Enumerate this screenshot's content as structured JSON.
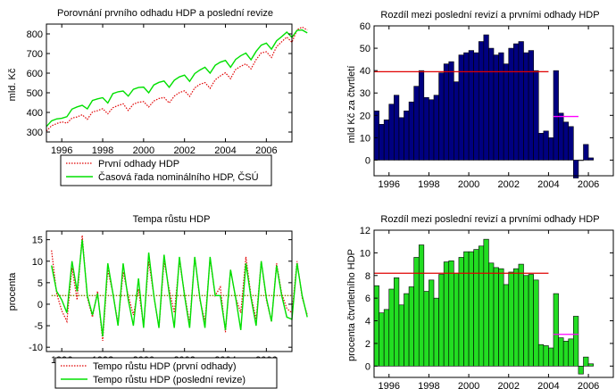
{
  "chart_data": [
    {
      "type": "line",
      "title": "Porovnání prvního odhadu HDP a poslední revize",
      "xlabel": "",
      "ylabel": "mld. Kč",
      "xlim": [
        1995.25,
        2007.25
      ],
      "ylim": [
        250,
        850
      ],
      "xticks": [
        1996,
        1998,
        2000,
        2002,
        2004,
        2006
      ],
      "yticks": [
        300,
        400,
        500,
        600,
        700,
        800
      ],
      "legend_position": "bottom",
      "grid": false,
      "series": [
        {
          "name": "První odhady HDP",
          "color": "#e00000",
          "style": "dotted",
          "values": [
            305,
            332,
            343,
            352,
            345,
            371,
            377,
            388,
            365,
            402,
            409,
            419,
            393,
            424,
            435,
            444,
            410,
            442,
            452,
            455,
            428,
            458,
            471,
            476,
            448,
            483,
            501,
            510,
            482,
            525,
            543,
            552,
            523,
            566,
            586,
            602,
            572,
            619,
            635,
            647,
            622,
            669,
            703,
            709,
            680,
            735,
            760,
            784,
            757,
            821,
            835,
            820
          ]
        },
        {
          "name": "Časová řada nominálního HDP, ČSÚ",
          "color": "#00e000",
          "style": "solid",
          "values": [
            328,
            357,
            367,
            370,
            378,
            417,
            428,
            436,
            418,
            461,
            469,
            475,
            448,
            496,
            505,
            509,
            483,
            518,
            527,
            529,
            500,
            540,
            553,
            560,
            528,
            564,
            581,
            590,
            558,
            598,
            616,
            630,
            600,
            640,
            656,
            665,
            630,
            670,
            689,
            702,
            668,
            711,
            743,
            753,
            722,
            765,
            786,
            809,
            782,
            818,
            820,
            805
          ]
        }
      ],
      "x_start": 1995.25,
      "x_step": 0.25
    },
    {
      "type": "bar",
      "title": "Rozdíl mezi poslední revizí a prvními odhady HDP",
      "xlabel": "",
      "ylabel": "mld Kč za čtvrtletí",
      "xlim": [
        1995.25,
        2007.25
      ],
      "ylim": [
        -7,
        60
      ],
      "xticks": [
        1996,
        1998,
        2000,
        2002,
        2004,
        2006
      ],
      "yticks": [
        0,
        10,
        20,
        30,
        40,
        50,
        60
      ],
      "bar_color": "#000080",
      "x_start": 1995.25,
      "x_step": 0.25,
      "values": [
        22,
        16,
        18,
        25,
        29,
        19,
        22,
        26,
        33,
        40,
        28,
        27,
        29,
        39,
        43,
        44,
        35,
        47,
        48,
        49,
        48,
        53,
        56,
        50,
        47,
        48,
        43,
        50,
        52,
        53,
        48,
        49,
        40,
        12,
        13,
        10,
        40,
        21,
        17,
        15,
        -8,
        0,
        7,
        1
      ],
      "reference_lines": [
        {
          "from": 1995.25,
          "to": 2004.0,
          "value": 39.5,
          "color": "#e00000"
        },
        {
          "from": 2004.25,
          "to": 2005.5,
          "value": 19.5,
          "color": "#ff00ff"
        }
      ]
    },
    {
      "type": "line",
      "title": "Tempa růstu HDP",
      "xlabel": "",
      "ylabel": "procenta",
      "xlim": [
        1995.25,
        2007.25
      ],
      "ylim": [
        -11,
        17
      ],
      "xticks": [
        1996,
        1998,
        2000,
        2002,
        2004,
        2006
      ],
      "yticks": [
        -10,
        -5,
        0,
        5,
        10,
        15
      ],
      "legend_position": "bottom",
      "grid": false,
      "x_start": 1995.5,
      "x_step": 0.25,
      "series": [
        {
          "name": "Tempo růstu HDP (první odhady)",
          "color": "#e00000",
          "style": "dotted",
          "values": [
            12.5,
            2.5,
            -1.5,
            -4.0,
            8.5,
            1.0,
            16.0,
            1.5,
            -3.0,
            3.0,
            -8.5,
            8.0,
            2.5,
            -4.5,
            7.5,
            2.0,
            -2.5,
            3.5,
            -5.0,
            10.0,
            2.0,
            -5.5,
            10.0,
            3.5,
            -2.0,
            10.0,
            2.5,
            -4.5,
            11.0,
            1.0,
            -4.0,
            10.5,
            2.0,
            4.0,
            -6.5,
            8.0,
            1.5,
            -2.0,
            11.0,
            2.0,
            -3.5,
            10.0,
            1.0,
            -4.0,
            9.5,
            2.5,
            -1.0,
            -2.0,
            10.0,
            1.5,
            -2.5
          ]
        },
        {
          "name": "Tempo růstu HDP (poslední revize)",
          "color": "#00e000",
          "style": "solid",
          "values": [
            9.0,
            3.0,
            1.0,
            -2.0,
            10.0,
            3.0,
            15.0,
            2.0,
            -2.5,
            2.5,
            -7.5,
            9.5,
            2.5,
            -5.0,
            9.5,
            1.0,
            -5.0,
            6.0,
            -5.5,
            12.0,
            2.0,
            -5.5,
            11.5,
            2.5,
            -5.5,
            11.0,
            2.0,
            -5.5,
            11.0,
            1.5,
            -5.5,
            11.0,
            2.0,
            2.0,
            -6.0,
            8.0,
            1.5,
            -6.0,
            9.5,
            1.5,
            -5.0,
            10.0,
            1.5,
            -4.0,
            9.0,
            2.0,
            -3.0,
            -3.5,
            9.5,
            2.0,
            -3.0
          ]
        }
      ],
      "reference_lines": [
        {
          "from": 1995.5,
          "to": 2007.25,
          "value": 2.0,
          "color": "#808000",
          "style": "dotted"
        }
      ]
    },
    {
      "type": "bar",
      "title": "Rozdíl mezi poslední revizí a prvními odhady HDP",
      "xlabel": "",
      "ylabel": "procenta čtvrtletního HDP",
      "xlim": [
        1995.25,
        2007.25
      ],
      "ylim": [
        -1,
        12
      ],
      "xticks": [
        1996,
        1998,
        2000,
        2002,
        2004,
        2006
      ],
      "yticks": [
        0,
        2,
        4,
        6,
        8,
        10,
        12
      ],
      "bar_color": "#22dd22",
      "x_start": 1995.25,
      "x_step": 0.25,
      "values": [
        7.1,
        4.7,
        5.0,
        6.8,
        7.8,
        5.4,
        6.4,
        7.0,
        9.6,
        10.7,
        6.6,
        7.6,
        6.0,
        8.1,
        9.2,
        9.3,
        8.2,
        9.6,
        10.1,
        10.1,
        10.3,
        10.6,
        11.2,
        9.1,
        8.7,
        8.6,
        7.2,
        8.3,
        8.6,
        9.0,
        8.0,
        8.1,
        7.6,
        1.9,
        1.8,
        1.6,
        6.4,
        2.5,
        2.2,
        2.4,
        4.4,
        -0.7,
        0.8,
        0.2
      ],
      "reference_lines": [
        {
          "from": 1995.25,
          "to": 2004.0,
          "value": 8.2,
          "color": "#e00000"
        },
        {
          "from": 2004.25,
          "to": 2005.5,
          "value": 2.8,
          "color": "#ff00ff"
        }
      ]
    }
  ]
}
